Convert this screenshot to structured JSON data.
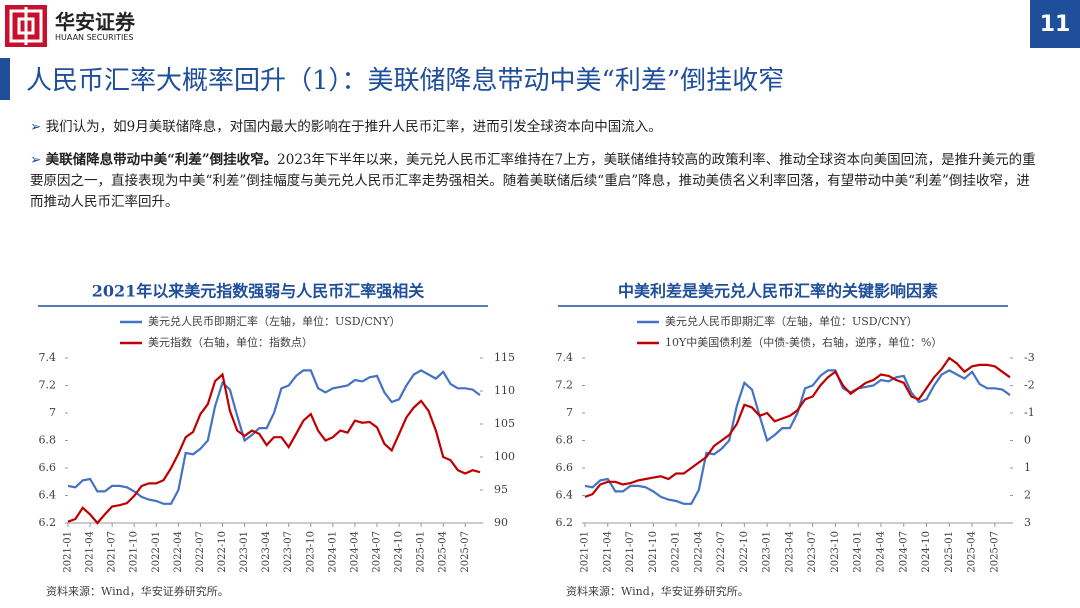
{
  "header": {
    "brand": "华安证券",
    "brand_en": "HUAAN SECURITIES",
    "page": "11",
    "title": "人民币汇率大概率回升（1）：美联储降息带动中美“利差”倒挂收窄"
  },
  "bullets": [
    {
      "text": "我们认为，如9月美联储降息，对国内最大的影响在于推升人民币汇率，进而引发全球资本向中国流入。"
    },
    {
      "bold": "美联储降息带动中美“利差”倒挂收窄。",
      "text": "2023年下半年以来，美元兑人民币汇率维持在7上方，美联储维持较高的政策利率、推动全球资本向美国回流，是推升美元的重要原因之一，直接表现为中美“利差”倒挂幅度与美元兑人民币汇率走势强相关。随着美联储后续“重启”降息，推动美债名义利率回落，有望带动中美“利差”倒挂收窄，进而推动人民币汇率回升。"
    }
  ],
  "chart_data": [
    {
      "type": "line",
      "title": "2021年以来美元指数强弱与人民币汇率强相关",
      "source": "资料来源：Wind，华安证券研究所。",
      "categories": [
        "2021-01",
        null,
        null,
        "2021-04",
        null,
        null,
        "2021-07",
        null,
        null,
        "2021-10",
        null,
        null,
        "2022-01",
        null,
        null,
        "2022-04",
        null,
        null,
        "2022-07",
        null,
        null,
        "2022-10",
        null,
        null,
        "2023-01",
        null,
        null,
        "2023-04",
        null,
        null,
        "2023-07",
        null,
        null,
        "2023-10",
        null,
        null,
        "2024-01",
        null,
        null,
        "2024-04",
        null,
        null,
        "2024-07",
        null,
        null,
        "2024-10",
        null,
        null,
        "2025-01",
        null,
        null,
        "2025-04",
        null,
        null,
        "2025-07",
        null,
        null
      ],
      "ylim": [
        6.2,
        7.4
      ],
      "yticks": [
        6.2,
        6.4,
        6.6,
        6.8,
        7,
        7.2,
        7.4
      ],
      "y2lim": [
        90,
        115
      ],
      "y2ticks": [
        90,
        95,
        100,
        105,
        110,
        115
      ],
      "series": [
        {
          "name": "美元兑人民币即期汇率（左轴，单位：USD/CNY）",
          "color": "#4472c4",
          "values": [
            6.47,
            6.46,
            6.51,
            6.52,
            6.43,
            6.43,
            6.47,
            6.47,
            6.46,
            6.43,
            6.39,
            6.37,
            6.36,
            6.34,
            6.34,
            6.44,
            6.71,
            6.7,
            6.74,
            6.8,
            7.05,
            7.22,
            7.17,
            6.98,
            6.8,
            6.84,
            6.89,
            6.89,
            7.0,
            7.18,
            7.2,
            7.27,
            7.31,
            7.31,
            7.18,
            7.15,
            7.18,
            7.19,
            7.2,
            7.24,
            7.23,
            7.26,
            7.27,
            7.15,
            7.08,
            7.1,
            7.2,
            7.28,
            7.31,
            7.28,
            7.25,
            7.3,
            7.21,
            7.18,
            7.18,
            7.17,
            7.13
          ]
        },
        {
          "name": "美元指数（右轴，单位：指数点）",
          "color": "#c00000",
          "axis": "y2",
          "values": [
            90.2,
            90.6,
            92.3,
            91.3,
            90.0,
            91.3,
            92.5,
            92.7,
            93.0,
            94.1,
            95.6,
            96.0,
            96.0,
            96.5,
            98.3,
            100.5,
            103.0,
            103.8,
            106.5,
            108.0,
            111.5,
            112.5,
            107.0,
            104.0,
            103.2,
            104.0,
            103.5,
            101.8,
            103.0,
            103.0,
            101.5,
            103.5,
            105.5,
            106.5,
            104.0,
            102.5,
            103.0,
            104.0,
            103.7,
            105.5,
            105.2,
            105.3,
            104.5,
            102.0,
            101.0,
            103.5,
            106.0,
            107.5,
            108.5,
            107.0,
            104.0,
            100.0,
            99.5,
            98.0,
            97.5,
            98.0,
            97.7
          ]
        }
      ]
    },
    {
      "type": "line",
      "title": "中美利差是美元兑人民币汇率的关键影响因素",
      "source": "资料来源：Wind，华安证券研究所。",
      "categories": [
        "2021-01",
        null,
        null,
        "2021-04",
        null,
        null,
        "2021-07",
        null,
        null,
        "2021-10",
        null,
        null,
        "2022-01",
        null,
        null,
        "2022-04",
        null,
        null,
        "2022-07",
        null,
        null,
        "2022-10",
        null,
        null,
        "2023-01",
        null,
        null,
        "2023-04",
        null,
        null,
        "2023-07",
        null,
        null,
        "2023-10",
        null,
        null,
        "2024-01",
        null,
        null,
        "2024-04",
        null,
        null,
        "2024-07",
        null,
        null,
        "2024-10",
        null,
        null,
        "2025-01",
        null,
        null,
        "2025-04",
        null,
        null,
        "2025-07",
        null,
        null
      ],
      "ylim": [
        6.2,
        7.4
      ],
      "yticks": [
        6.2,
        6.4,
        6.6,
        6.8,
        7,
        7.2,
        7.4
      ],
      "y2lim": [
        3,
        -3
      ],
      "y2ticks": [
        3,
        2,
        1,
        0,
        -1,
        -2,
        -3
      ],
      "series": [
        {
          "name": "美元兑人民币即期汇率（左轴，单位：USD/CNY）",
          "color": "#4472c4",
          "values": [
            6.47,
            6.46,
            6.51,
            6.52,
            6.43,
            6.43,
            6.47,
            6.47,
            6.46,
            6.43,
            6.39,
            6.37,
            6.36,
            6.34,
            6.34,
            6.44,
            6.71,
            6.7,
            6.74,
            6.8,
            7.05,
            7.22,
            7.17,
            6.98,
            6.8,
            6.84,
            6.89,
            6.89,
            7.0,
            7.18,
            7.2,
            7.27,
            7.31,
            7.31,
            7.18,
            7.15,
            7.18,
            7.19,
            7.2,
            7.24,
            7.23,
            7.26,
            7.27,
            7.15,
            7.08,
            7.1,
            7.2,
            7.28,
            7.31,
            7.28,
            7.25,
            7.3,
            7.21,
            7.18,
            7.18,
            7.17,
            7.13
          ]
        },
        {
          "name": "10Y中美国债利差（中债-美债，右轴，逆序，单位：%）",
          "color": "#c00000",
          "axis": "y2",
          "values": [
            2.05,
            1.95,
            1.6,
            1.5,
            1.5,
            1.6,
            1.55,
            1.45,
            1.4,
            1.35,
            1.3,
            1.4,
            1.2,
            1.2,
            1.0,
            0.8,
            0.6,
            0.2,
            0.0,
            -0.2,
            -0.6,
            -1.3,
            -1.2,
            -0.9,
            -1.0,
            -0.7,
            -0.8,
            -0.9,
            -1.1,
            -1.5,
            -1.6,
            -2.0,
            -2.3,
            -2.5,
            -2.0,
            -1.7,
            -1.9,
            -2.1,
            -2.2,
            -2.4,
            -2.35,
            -2.2,
            -2.1,
            -1.6,
            -1.5,
            -1.9,
            -2.3,
            -2.6,
            -3.0,
            -2.8,
            -2.5,
            -2.7,
            -2.75,
            -2.75,
            -2.7,
            -2.5,
            -2.3
          ]
        }
      ]
    }
  ]
}
